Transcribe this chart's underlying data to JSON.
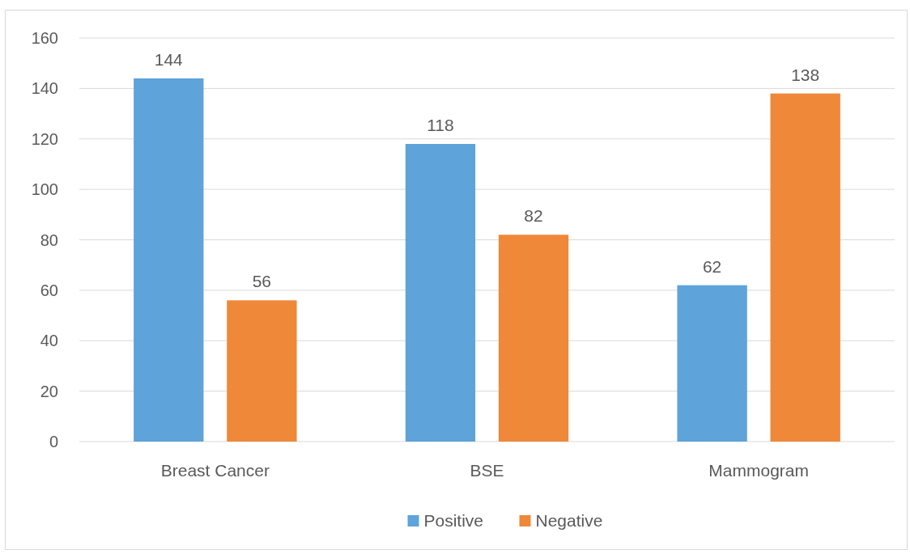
{
  "chart_data": {
    "type": "bar",
    "categories": [
      "Breast Cancer",
      "BSE",
      "Mammogram"
    ],
    "series": [
      {
        "name": "Positive",
        "color": "#5fa3db",
        "values": [
          144,
          118,
          62
        ]
      },
      {
        "name": "Negative",
        "color": "#ef8838",
        "values": [
          56,
          82,
          138
        ]
      }
    ],
    "ylim": [
      0,
      160
    ],
    "yticks": [
      0,
      20,
      40,
      60,
      80,
      100,
      120,
      140,
      160
    ],
    "grid": "y",
    "legend": "bottom",
    "data_labels": true
  }
}
